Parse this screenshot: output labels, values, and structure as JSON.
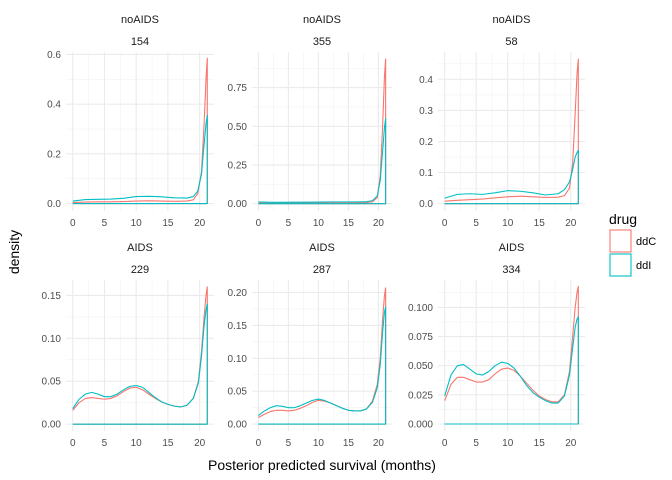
{
  "chart_data": {
    "type": "line",
    "xlabel": "Posterior predicted survival (months)",
    "ylabel": "density",
    "x_ticks": [
      0,
      5,
      10,
      15,
      20
    ],
    "legend": {
      "title": "drug",
      "position": "right",
      "entries": [
        {
          "name": "ddC",
          "color": "#F8766D"
        },
        {
          "name": "ddI",
          "color": "#00BFC4"
        }
      ]
    },
    "grid": true,
    "xlim": [
      -1.06,
      22.26
    ],
    "panels": [
      {
        "strip1": "noAIDS",
        "strip2": "154",
        "ylim": [
          -0.03,
          0.61
        ],
        "yticks": [
          0.0,
          0.2,
          0.4,
          0.6
        ],
        "ytick_labels": [
          "0.0",
          "0.2",
          "0.4",
          "0.6"
        ],
        "series": [
          {
            "name": "ddC",
            "x": [
              0,
              2,
              4,
              6,
              8,
              10,
              12,
              14,
              16,
              18,
              19,
              19.7,
              20.3,
              20.7,
              21,
              21.2,
              21.2
            ],
            "y": [
              0.004,
              0.006,
              0.007,
              0.007,
              0.008,
              0.01,
              0.011,
              0.01,
              0.009,
              0.01,
              0.015,
              0.04,
              0.13,
              0.32,
              0.5,
              0.585,
              0
            ]
          },
          {
            "name": "ddI",
            "x": [
              0,
              2,
              4,
              6,
              8,
              10,
              12,
              14,
              16,
              18,
              19,
              19.7,
              20.3,
              20.7,
              21,
              21.2,
              21.2
            ],
            "y": [
              0.01,
              0.016,
              0.017,
              0.018,
              0.021,
              0.028,
              0.029,
              0.027,
              0.023,
              0.022,
              0.028,
              0.05,
              0.12,
              0.24,
              0.32,
              0.355,
              0
            ]
          }
        ]
      },
      {
        "strip1": "noAIDS",
        "strip2": "355",
        "ylim": [
          -0.047,
          0.98
        ],
        "yticks": [
          0.0,
          0.25,
          0.5,
          0.75
        ],
        "ytick_labels": [
          "0.00",
          "0.25",
          "0.50",
          "0.75"
        ],
        "series": [
          {
            "name": "ddC",
            "x": [
              0,
              2,
              4,
              6,
              8,
              10,
              12,
              14,
              16,
              18,
              19,
              19.8,
              20.3,
              20.7,
              21,
              21.2,
              21.2
            ],
            "y": [
              0.005,
              0.004,
              0.004,
              0.005,
              0.005,
              0.006,
              0.006,
              0.006,
              0.006,
              0.008,
              0.012,
              0.04,
              0.18,
              0.5,
              0.82,
              0.935,
              0
            ]
          },
          {
            "name": "ddI",
            "x": [
              0,
              2,
              4,
              6,
              8,
              10,
              12,
              14,
              16,
              18,
              19,
              19.8,
              20.3,
              20.7,
              21,
              21.2,
              21.2
            ],
            "y": [
              0.012,
              0.009,
              0.009,
              0.01,
              0.01,
              0.011,
              0.012,
              0.012,
              0.012,
              0.013,
              0.02,
              0.05,
              0.15,
              0.34,
              0.49,
              0.55,
              0
            ]
          }
        ]
      },
      {
        "strip1": "noAIDS",
        "strip2": "58",
        "ylim": [
          -0.0235,
          0.488
        ],
        "yticks": [
          0.0,
          0.1,
          0.2,
          0.3,
          0.4
        ],
        "ytick_labels": [
          "0.0",
          "0.1",
          "0.2",
          "0.3",
          "0.4"
        ],
        "series": [
          {
            "name": "ddC",
            "x": [
              0,
              2,
              4,
              6,
              8,
              10,
              12,
              14,
              16,
              18,
              19,
              19.8,
              20.3,
              20.7,
              21,
              21.2,
              21.2
            ],
            "y": [
              0.008,
              0.011,
              0.013,
              0.015,
              0.019,
              0.022,
              0.024,
              0.022,
              0.02,
              0.021,
              0.026,
              0.05,
              0.13,
              0.29,
              0.42,
              0.465,
              0
            ]
          },
          {
            "name": "ddI",
            "x": [
              0,
              2,
              4,
              6,
              8,
              10,
              12,
              14,
              16,
              18,
              19,
              19.8,
              20.3,
              20.7,
              21,
              21.2,
              21.2
            ],
            "y": [
              0.018,
              0.03,
              0.032,
              0.03,
              0.035,
              0.042,
              0.04,
              0.035,
              0.028,
              0.032,
              0.045,
              0.07,
              0.11,
              0.15,
              0.165,
              0.172,
              0
            ]
          }
        ]
      },
      {
        "strip1": "AIDS",
        "strip2": "229",
        "ylim": [
          -0.008,
          0.168
        ],
        "yticks": [
          0.0,
          0.05,
          0.1,
          0.15
        ],
        "ytick_labels": [
          "0.00",
          "0.05",
          "0.10",
          "0.15"
        ],
        "series": [
          {
            "name": "ddC",
            "x": [
              0,
              1,
              2,
              3,
              4,
              5,
              6,
              7,
              8,
              9,
              10,
              11,
              12,
              13,
              14,
              15,
              16,
              17,
              18,
              19,
              19.8,
              20.3,
              20.7,
              21,
              21.2,
              21.2
            ],
            "y": [
              0.016,
              0.025,
              0.03,
              0.031,
              0.03,
              0.029,
              0.03,
              0.033,
              0.038,
              0.042,
              0.043,
              0.04,
              0.035,
              0.03,
              0.026,
              0.023,
              0.021,
              0.02,
              0.022,
              0.03,
              0.05,
              0.085,
              0.125,
              0.15,
              0.16,
              0
            ]
          },
          {
            "name": "ddI",
            "x": [
              0,
              1,
              2,
              3,
              4,
              5,
              6,
              7,
              8,
              9,
              10,
              11,
              12,
              13,
              14,
              15,
              16,
              17,
              18,
              19,
              19.8,
              20.3,
              20.7,
              21,
              21.2,
              21.2
            ],
            "y": [
              0.018,
              0.029,
              0.035,
              0.037,
              0.035,
              0.032,
              0.032,
              0.035,
              0.04,
              0.044,
              0.045,
              0.043,
              0.037,
              0.031,
              0.026,
              0.023,
              0.021,
              0.02,
              0.022,
              0.03,
              0.048,
              0.08,
              0.115,
              0.133,
              0.14,
              0
            ]
          }
        ]
      },
      {
        "strip1": "AIDS",
        "strip2": "287",
        "ylim": [
          -0.0105,
          0.219
        ],
        "yticks": [
          0.0,
          0.05,
          0.1,
          0.15,
          0.2
        ],
        "ytick_labels": [
          "0.00",
          "0.05",
          "0.10",
          "0.15",
          "0.20"
        ],
        "series": [
          {
            "name": "ddC",
            "x": [
              0,
              1,
              2,
              3,
              4,
              5,
              6,
              7,
              8,
              9,
              10,
              11,
              12,
              13,
              14,
              15,
              16,
              17,
              18,
              19,
              19.8,
              20.3,
              20.7,
              21,
              21.2,
              21.2
            ],
            "y": [
              0.01,
              0.015,
              0.019,
              0.021,
              0.021,
              0.02,
              0.021,
              0.024,
              0.028,
              0.033,
              0.036,
              0.035,
              0.032,
              0.028,
              0.024,
              0.021,
              0.02,
              0.02,
              0.023,
              0.035,
              0.06,
              0.1,
              0.16,
              0.195,
              0.207,
              0
            ]
          },
          {
            "name": "ddI",
            "x": [
              0,
              1,
              2,
              3,
              4,
              5,
              6,
              7,
              8,
              9,
              10,
              11,
              12,
              13,
              14,
              15,
              16,
              17,
              18,
              19,
              19.8,
              20.3,
              20.7,
              21,
              21.2,
              21.2
            ],
            "y": [
              0.013,
              0.02,
              0.025,
              0.028,
              0.027,
              0.025,
              0.025,
              0.028,
              0.032,
              0.036,
              0.038,
              0.036,
              0.032,
              0.028,
              0.024,
              0.021,
              0.02,
              0.02,
              0.023,
              0.033,
              0.055,
              0.09,
              0.14,
              0.17,
              0.178,
              0
            ]
          }
        ]
      },
      {
        "strip1": "AIDS",
        "strip2": "334",
        "ylim": [
          -0.006,
          0.1235
        ],
        "yticks": [
          0.0,
          0.025,
          0.05,
          0.075,
          0.1
        ],
        "ytick_labels": [
          "0.000",
          "0.025",
          "0.050",
          "0.075",
          "0.100"
        ],
        "series": [
          {
            "name": "ddC",
            "x": [
              0,
              1,
              2,
              3,
              4,
              5,
              6,
              7,
              8,
              9,
              10,
              11,
              12,
              13,
              14,
              15,
              16,
              17,
              18,
              19,
              19.8,
              20.3,
              20.7,
              21,
              21.2,
              21.2
            ],
            "y": [
              0.02,
              0.034,
              0.04,
              0.04,
              0.038,
              0.036,
              0.036,
              0.038,
              0.043,
              0.047,
              0.048,
              0.046,
              0.041,
              0.035,
              0.029,
              0.024,
              0.021,
              0.019,
              0.019,
              0.025,
              0.045,
              0.075,
              0.1,
              0.113,
              0.118,
              0
            ]
          },
          {
            "name": "ddI",
            "x": [
              0,
              1,
              2,
              3,
              4,
              5,
              6,
              7,
              8,
              9,
              10,
              11,
              12,
              13,
              14,
              15,
              16,
              17,
              18,
              19,
              19.8,
              20.3,
              20.7,
              21,
              21.2,
              21.2
            ],
            "y": [
              0.024,
              0.042,
              0.05,
              0.051,
              0.047,
              0.043,
              0.042,
              0.045,
              0.05,
              0.053,
              0.052,
              0.048,
              0.041,
              0.033,
              0.027,
              0.023,
              0.02,
              0.018,
              0.018,
              0.024,
              0.042,
              0.065,
              0.083,
              0.09,
              0.092,
              0
            ]
          }
        ]
      }
    ]
  }
}
